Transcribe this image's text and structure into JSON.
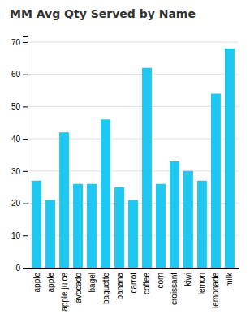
{
  "chart_data": {
    "type": "bar",
    "title": "MM Avg Qty Served by Name",
    "categories": [
      "apple",
      "apple",
      "apple juice",
      "avocado",
      "bagel",
      "baguette",
      "banana",
      "carrot",
      "coffee",
      "corn",
      "croissant",
      "kiwi",
      "lemon",
      "lemonade",
      "milk"
    ],
    "values": [
      27,
      21,
      42,
      26,
      26,
      46,
      25,
      21,
      62,
      26,
      33,
      30,
      27,
      54,
      68
    ],
    "color": "#1EC8F0",
    "ylim": [
      0,
      72
    ],
    "yticks": [
      0,
      10,
      20,
      30,
      40,
      50,
      60,
      70
    ],
    "grid": true
  }
}
